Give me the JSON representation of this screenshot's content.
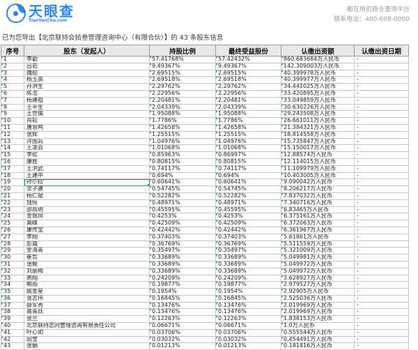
{
  "brand": {
    "logo_text": "天眼查",
    "logo_sub": "TianYanCha.com",
    "accent_color": "#2E86E8"
  },
  "header_right": {
    "tagline": "都在用的商业查询平台",
    "phone": "联系电话：400-608-0000"
  },
  "export_notice": "已为您导出【北京联持会拾叁管理咨询中心（有限合伙）】的 43 条股东信息",
  "colors": {
    "selection_green": "#00A571",
    "corner_triangle_green": "#3FA757",
    "header_bg": "#E9E9E9"
  },
  "table": {
    "columns": [
      "序号",
      "股东（发起人）",
      "持股比例",
      "最终受益股份",
      "认缴出资额",
      "认缴出资日期"
    ],
    "selected_cell": {
      "row_index": 18,
      "col_index": 1
    },
    "rows": [
      [
        "1",
        "李勤",
        "57.41768%",
        "57.42432%",
        "860.683684万人民币",
        "-"
      ],
      [
        "2",
        "吕岩",
        "9.49367%",
        "9.49367%",
        "142.309003万人民币",
        "-"
      ],
      [
        "3",
        "魏皎",
        "2.69515%",
        "2.69515%",
        "40.399978万人民币",
        "-"
      ],
      [
        "4",
        "杨玉英",
        "2.69518%",
        "2.69518%",
        "40.399977万人民币",
        "-"
      ],
      [
        "5",
        "孙洪生",
        "2.29762%",
        "2.29762%",
        "34.441025万人民币",
        "-"
      ],
      [
        "6",
        "陈浩",
        "2.22956%",
        "2.22956%",
        "33.420895万人民币",
        "-"
      ],
      [
        "7",
        "杨建祖",
        "2.20481%",
        "2.20481%",
        "33.049859万人民币",
        "-"
      ],
      [
        "8",
        "王平生",
        "2.04339%",
        "2.04339%",
        "30.630226万人民币",
        "-"
      ],
      [
        "9",
        "王世儒",
        "1.95088%",
        "1.95088%",
        "29.243508万人民币",
        "-"
      ],
      [
        "10",
        "肖耘",
        "1.7786%",
        "1.7786%",
        "26.661011万人民币",
        "-"
      ],
      [
        "11",
        "唐恩鸣",
        "1.42658%",
        "1.42658%",
        "21.384321万人民币",
        "-"
      ],
      [
        "12",
        "张辉",
        "1.25515%",
        "1.25515%",
        "18.814558万人民币",
        "-"
      ],
      [
        "13",
        "许国兵",
        "1.04976%",
        "1.04976%",
        "15.735847万人民币",
        "-"
      ],
      [
        "14",
        "王凌云",
        "1.01068%",
        "1.01068%",
        "15.150017万人民币",
        "-"
      ],
      [
        "15",
        "李虹",
        "0.85963%",
        "0.86997%",
        "12.88574万人民币",
        "-"
      ],
      [
        "16",
        "康胜",
        "0.80815%",
        "0.80815%",
        "12.114015万人民币",
        "-"
      ],
      [
        "17",
        "王洪武",
        "0.74117%",
        "0.74117%",
        "11.109979万人民币",
        "-"
      ],
      [
        "18",
        "王建中",
        "0.694%",
        "0.694%",
        "10.403005万人民币",
        "-"
      ],
      [
        "19",
        "孙小拮",
        "0.60641%",
        "0.60641%",
        "9.090042万人民币",
        "-"
      ],
      [
        "20",
        "余子建",
        "0.54745%",
        "0.54745%",
        "8.206217万人民币",
        "-"
      ],
      [
        "21",
        "杨仁斌",
        "0.52282%",
        "0.52282%",
        "7.837032万人民币",
        "-"
      ],
      [
        "22",
        "钱恒",
        "0.48971%",
        "0.48971%",
        "7.340716万人民币",
        "-"
      ],
      [
        "23",
        "邵尚明",
        "0.45595%",
        "0.45595%",
        "6.83465万人民币",
        "-"
      ],
      [
        "24",
        "金银凤",
        "0.4253%",
        "0.4253%",
        "6.375161万人民币",
        "-"
      ],
      [
        "25",
        "高峰",
        "0.42509%",
        "0.42509%",
        "6.372063万人民币",
        "-"
      ],
      [
        "26",
        "康传宝",
        "0.42442%",
        "0.42442%",
        "6.361967万人民币",
        "-"
      ],
      [
        "27",
        "李翔",
        "0.37403%",
        "0.37403%",
        "5.61861万人民币",
        "-"
      ],
      [
        "28",
        "彭威",
        "0.36769%",
        "0.36769%",
        "5.511559万人民币",
        "-"
      ],
      [
        "29",
        "金海青",
        "0.35497%",
        "0.35497%",
        "5.321009万人民币",
        "-"
      ],
      [
        "30",
        "崔哲",
        "0.33689%",
        "0.33689%",
        "5.049981万人民币",
        "-"
      ],
      [
        "31",
        "张颖",
        "0.33689%",
        "0.33689%",
        "5.049972万人民币",
        "-"
      ],
      [
        "32",
        "刘丽梅",
        "0.33689%",
        "0.33689%",
        "5.049972万人民币",
        "-"
      ],
      [
        "33",
        "燕翔",
        "0.24209%",
        "0.24209%",
        "3.628927万人民币",
        "-"
      ],
      [
        "34",
        "鲍雨",
        "0.19877%",
        "0.19877%",
        "2.979527万人民币",
        "-"
      ],
      [
        "35",
        "姚金星",
        "0.1954%",
        "0.1954%",
        "2.92905万人民币",
        "-"
      ],
      [
        "36",
        "张志伟",
        "0.16845%",
        "0.16845%",
        "2.525036万人民币",
        "-"
      ],
      [
        "37",
        "薛军秀",
        "0.13476%",
        "0.13476%",
        "2.019969万人民币",
        "-"
      ],
      [
        "38",
        "高青跃",
        "0.13476%",
        "0.13476%",
        "2.019969万人民币",
        "-"
      ],
      [
        "39",
        "张兰",
        "0.12263%",
        "0.12263%",
        "1.838153万人民币",
        "-"
      ],
      [
        "40",
        "北京联持志同管理咨询有限责任公司",
        "0.06671%",
        "0.06671%",
        "1.0万人民币",
        "-"
      ],
      [
        "41",
        "叶心如",
        "0.03706%",
        "0.03706%",
        "0.555544万人民币",
        "-"
      ],
      [
        "42",
        "田莹",
        "0.03032%",
        "0.03032%",
        "0.454491万人民币",
        "-"
      ],
      [
        "43",
        "张娟",
        "0.01213%",
        "0.01213%",
        "0.181816万人民币",
        "-"
      ]
    ]
  }
}
